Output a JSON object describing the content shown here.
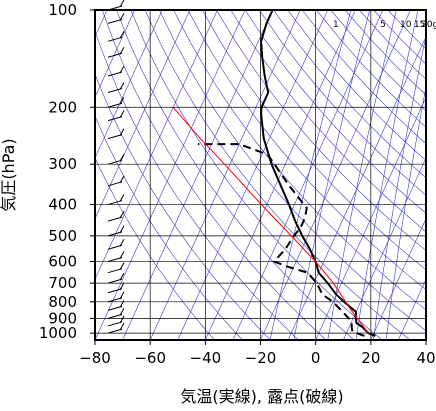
{
  "chart_data": {
    "type": "line",
    "xlabel": "気温(実線), 露点(破線)",
    "ylabel": "気圧(hPa)",
    "xlim": [
      -80,
      40
    ],
    "ylim": [
      1050,
      100
    ],
    "y_scale": "log",
    "x_ticks": [
      "−80",
      "−60",
      "−40",
      "−20",
      "0",
      "20",
      "40"
    ],
    "x_tick_values": [
      -80,
      -60,
      -40,
      -20,
      0,
      20,
      40
    ],
    "y_ticks": [
      "100",
      "200",
      "300",
      "400",
      "500",
      "600",
      "700",
      "800",
      "900",
      "1000"
    ],
    "y_tick_values": [
      100,
      200,
      300,
      400,
      500,
      600,
      700,
      800,
      900,
      1000
    ],
    "mixing_ratio_labels": [
      {
        "text": "1",
        "w": 1
      },
      {
        "text": "5",
        "w": 5
      },
      {
        "text": "10",
        "w": 10
      },
      {
        "text": "15",
        "w": 15
      },
      {
        "text": "20g",
        "w": 20
      }
    ],
    "grid": true,
    "series": [
      {
        "style": "temperature-solid",
        "points": [
          [
            21,
            1020
          ],
          [
            18,
            1000
          ],
          [
            15,
            960
          ],
          [
            12,
            930
          ],
          [
            11,
            900
          ],
          [
            10,
            860
          ],
          [
            4,
            800
          ],
          [
            0,
            760
          ],
          [
            -5,
            700
          ],
          [
            -10,
            650
          ],
          [
            -13,
            600
          ],
          [
            -17,
            550
          ],
          [
            -22,
            500
          ],
          [
            -27,
            450
          ],
          [
            -32,
            400
          ],
          [
            -38,
            350
          ],
          [
            -45,
            300
          ],
          [
            -52,
            250
          ],
          [
            -57,
            210
          ],
          [
            -58,
            200
          ],
          [
            -58,
            180
          ],
          [
            -62,
            160
          ],
          [
            -66,
            140
          ],
          [
            -69,
            125
          ],
          [
            -70,
            110
          ],
          [
            -70,
            100
          ]
        ]
      },
      {
        "style": "dewpoint-dashed",
        "points": [
          [
            17,
            1020
          ],
          [
            12,
            990
          ],
          [
            11,
            960
          ],
          [
            10,
            920
          ],
          [
            6,
            870
          ],
          [
            0,
            800
          ],
          [
            -5,
            760
          ],
          [
            -9,
            700
          ],
          [
            -14,
            650
          ],
          [
            -23,
            620
          ],
          [
            -28,
            600
          ],
          [
            -26,
            550
          ],
          [
            -25,
            500
          ],
          [
            -24,
            470
          ],
          [
            -24,
            440
          ],
          [
            -25,
            410
          ],
          [
            -35,
            350
          ],
          [
            -42,
            310
          ],
          [
            -48,
            280
          ],
          [
            -60,
            260
          ],
          [
            -75,
            260
          ]
        ]
      },
      {
        "style": "parcel-red",
        "points": [
          [
            18,
            1000
          ],
          [
            8,
            850
          ],
          [
            -3,
            700
          ],
          [
            -13,
            600
          ],
          [
            -26,
            500
          ],
          [
            -42,
            400
          ],
          [
            -62,
            300
          ],
          [
            -75,
            250
          ],
          [
            -90,
            200
          ]
        ]
      }
    ],
    "colors": {
      "temperature": "#000000",
      "dewpoint": "#000000",
      "parcel": "#ff0000",
      "thermo_lines": "#3a3acc",
      "grid": "#000000"
    }
  }
}
